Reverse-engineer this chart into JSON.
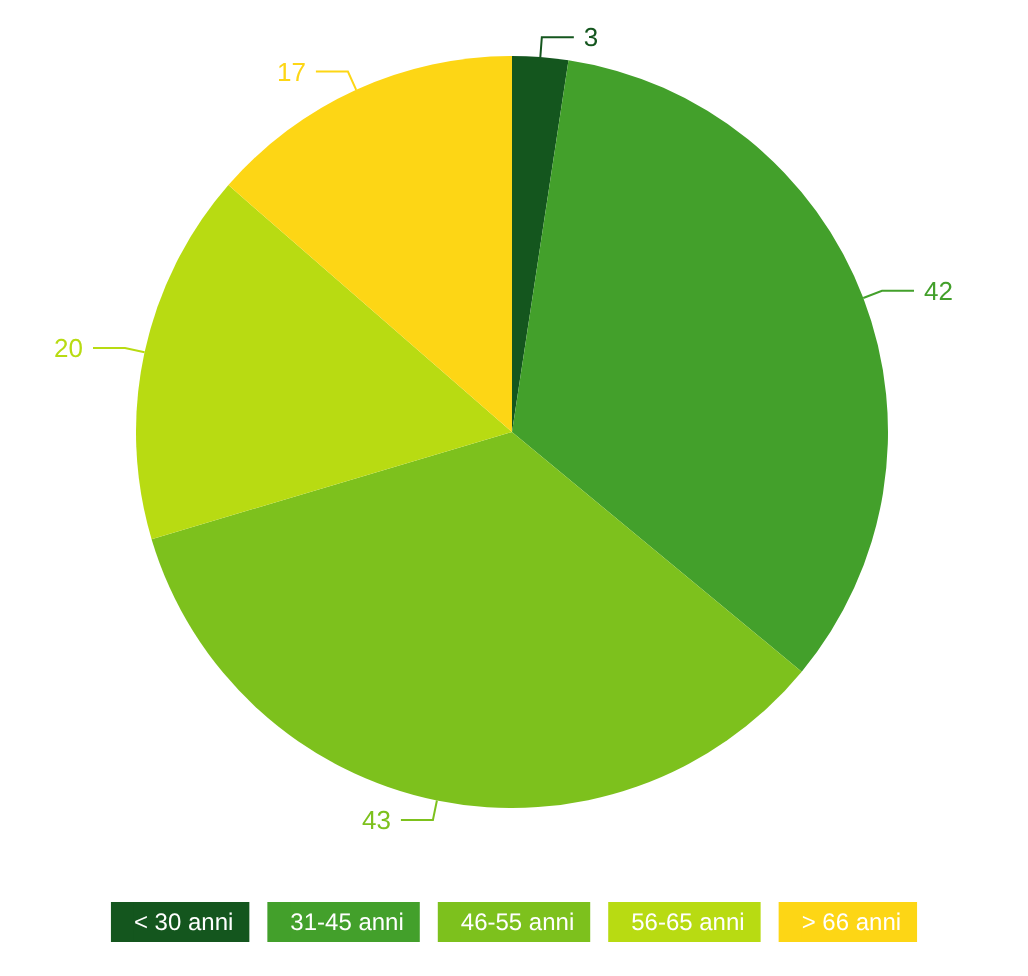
{
  "chart_data": {
    "type": "pie",
    "categories": [
      "< 30 anni",
      "31-45 anni",
      "46-55 anni",
      "56-65 anni",
      "> 66 anni"
    ],
    "values": [
      3,
      42,
      43,
      20,
      17
    ],
    "colors": [
      "#14561e",
      "#43a02b",
      "#7dc11d",
      "#b8db12",
      "#fdd615"
    ],
    "data_labels": true,
    "legend": "bottom"
  }
}
